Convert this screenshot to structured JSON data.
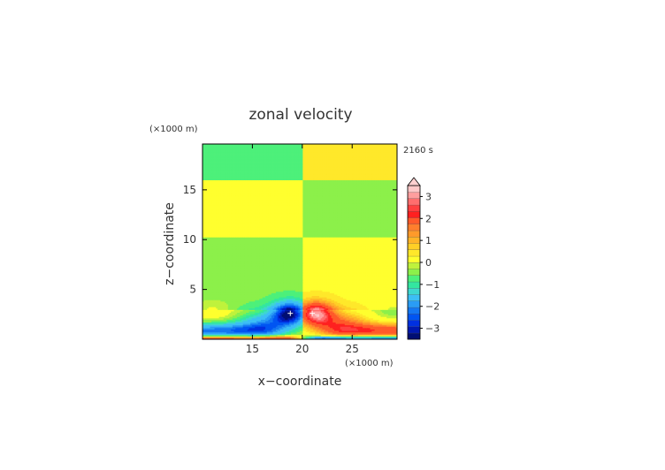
{
  "chart_data": {
    "type": "heatmap",
    "title": "zonal velocity",
    "xlabel": "x−coordinate",
    "ylabel": "z−coordinate",
    "x_unit": "(×1000 m)",
    "y_unit": "(×1000 m)",
    "time_label": "2160 s",
    "xlim": [
      10,
      29.5
    ],
    "ylim": [
      0,
      19.6
    ],
    "x_ticks": [
      15,
      20,
      25
    ],
    "x_tick_labels": [
      "15",
      "20",
      "25"
    ],
    "y_ticks": [
      5,
      10,
      15
    ],
    "y_tick_labels": [
      "5",
      "10",
      "15"
    ],
    "colorbar": {
      "min": -3.5,
      "max": 3.5,
      "step": 0.25,
      "tick_values": [
        3,
        2,
        1,
        0,
        -1,
        -2,
        -3
      ],
      "tick_labels": [
        "3",
        "2",
        "1",
        "0",
        "−1",
        "−2",
        "−3"
      ],
      "overflow_top": true
    },
    "field_features": [
      {
        "feature": "near-surface jet",
        "x": 11,
        "z": 0.8,
        "value": -1.8
      },
      {
        "feature": "near-surface jet",
        "x": 28,
        "z": 0.8,
        "value": 1.8
      },
      {
        "feature": "minimum",
        "x": 18.8,
        "z": 2.6,
        "value": -2.8
      },
      {
        "feature": "maximum",
        "x": 21.0,
        "z": 2.6,
        "value": 2.8
      },
      {
        "feature": "surface reversal",
        "x": 16.5,
        "z": 0.15,
        "value": 2.5
      },
      {
        "feature": "surface reversal",
        "x": 23.5,
        "z": 0.15,
        "value": -2.5
      }
    ]
  },
  "colors": {
    "colorbar_palette": [
      "#000e73",
      "#0018b0",
      "#0030e0",
      "#0055f2",
      "#1477f2",
      "#2a9cf5",
      "#3cbef5",
      "#3ed7cf",
      "#33e6a0",
      "#4df07a",
      "#8cf04a",
      "#bff23c",
      "#ffff2e",
      "#ffe82a",
      "#ffcf26",
      "#ffb428",
      "#ff9a2a",
      "#ff7f2d",
      "#ff5a2a",
      "#ff2020",
      "#ff4040",
      "#ff6e6e",
      "#ff9e9e",
      "#ffc8c8"
    ]
  }
}
